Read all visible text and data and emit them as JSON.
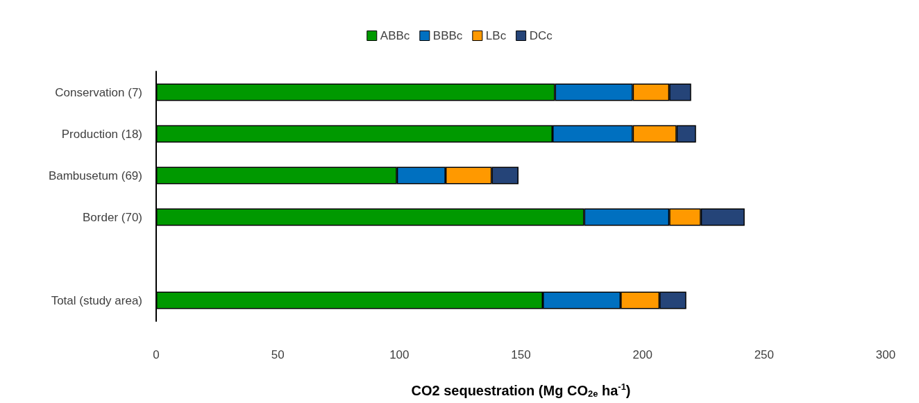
{
  "chart_data": {
    "type": "bar",
    "orientation": "horizontal",
    "stacked": true,
    "xlabel": "CO2 sequestration (Mg CO$_{2e}$ ha$^{-1}$)",
    "categories": [
      "Conservation (7)",
      "Production (18)",
      "Bambusetum (69)",
      "Border (70)",
      null,
      "Total (study area)"
    ],
    "series": [
      {
        "name": "ABBc",
        "color": "#009900",
        "values": [
          164,
          163,
          99,
          176,
          null,
          159
        ]
      },
      {
        "name": "BBBc",
        "color": "#0070c0",
        "values": [
          32,
          33,
          20,
          35,
          null,
          32
        ]
      },
      {
        "name": "LBc",
        "color": "#ff9900",
        "values": [
          15,
          18,
          19,
          13,
          null,
          16
        ]
      },
      {
        "name": "DCc",
        "color": "#254478",
        "values": [
          9,
          8,
          11,
          18,
          null,
          11
        ]
      }
    ],
    "xlim": [
      0,
      300
    ],
    "xticks": [
      0,
      50,
      100,
      150,
      200,
      250,
      300
    ],
    "grid": false,
    "legend": "top"
  }
}
